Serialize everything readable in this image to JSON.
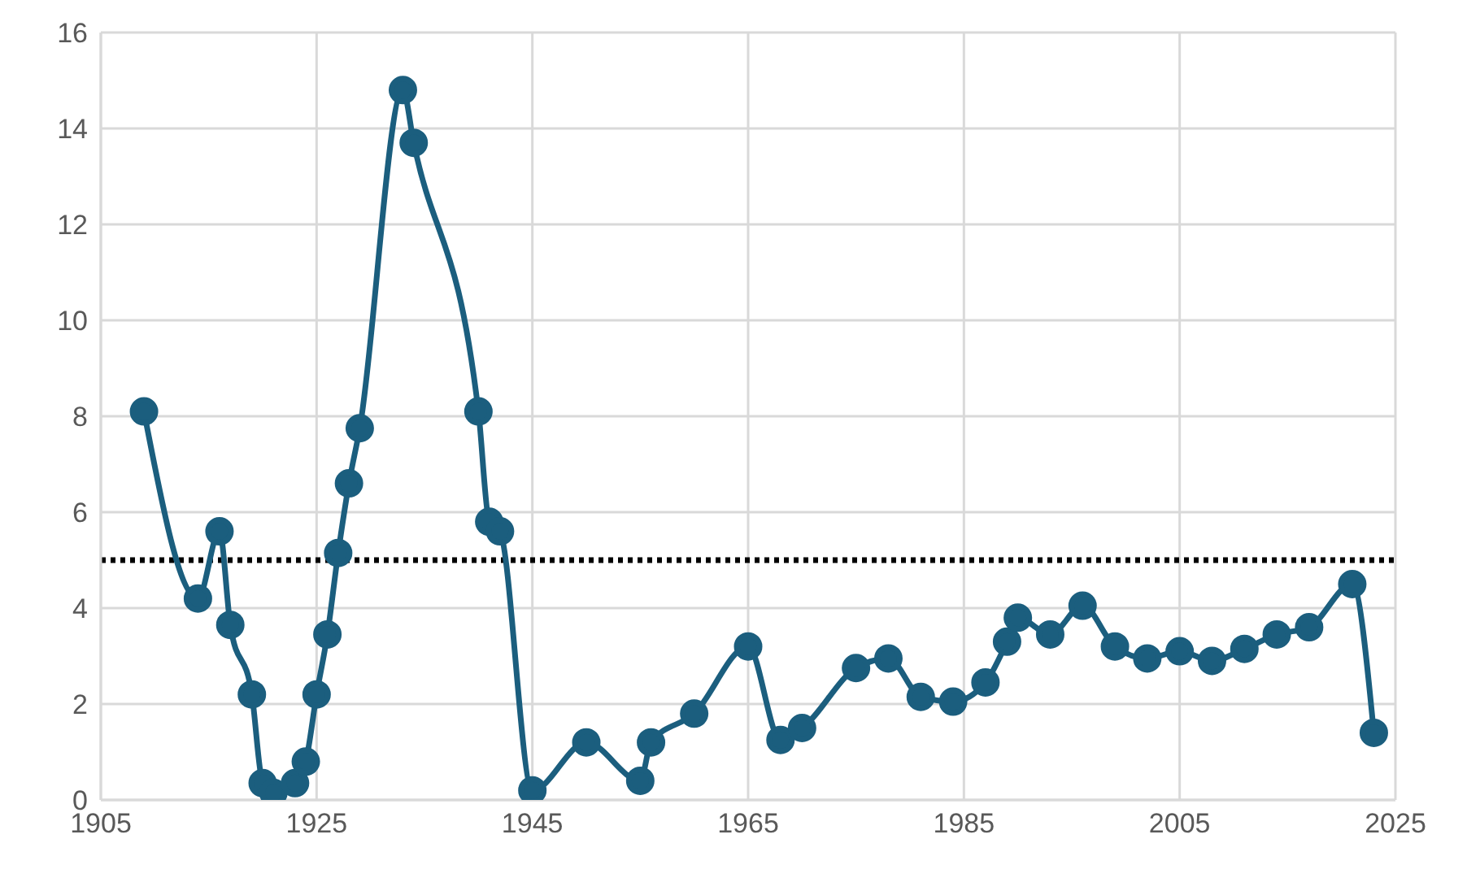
{
  "chart_data": {
    "type": "line",
    "x": [
      1909,
      1914,
      1916,
      1917,
      1919,
      1920,
      1921,
      1923,
      1924,
      1925,
      1926,
      1927,
      1928,
      1929,
      1933,
      1934,
      1940,
      1941,
      1942,
      1945,
      1950,
      1955,
      1956,
      1960,
      1965,
      1968,
      1970,
      1975,
      1978,
      1981,
      1984,
      1987,
      1989,
      1990,
      1993,
      1996,
      1999,
      2002,
      2005,
      2008,
      2011,
      2014,
      2017,
      2021,
      2023
    ],
    "series": [
      {
        "color": "#1b5e7e",
        "values": [
          8.1,
          4.2,
          5.6,
          3.65,
          2.2,
          0.35,
          0.15,
          0.35,
          0.8,
          2.2,
          3.45,
          5.15,
          6.6,
          7.75,
          14.8,
          13.7,
          8.1,
          5.8,
          5.6,
          0.2,
          1.2,
          0.4,
          1.2,
          1.8,
          3.2,
          1.25,
          1.5,
          2.75,
          2.95,
          2.15,
          2.05,
          2.45,
          3.3,
          3.8,
          3.45,
          4.05,
          3.2,
          2.95,
          3.1,
          2.9,
          3.15,
          3.45,
          3.6,
          4.5,
          1.4
        ]
      }
    ],
    "xlim": [
      1905,
      2025
    ],
    "xticks": [
      1905,
      1925,
      1945,
      1965,
      1985,
      2005,
      2025
    ],
    "ylim": [
      0,
      16
    ],
    "yticks": [
      0,
      2,
      4,
      6,
      8,
      10,
      12,
      14,
      16
    ],
    "ref_lines": [
      {
        "axis": "y",
        "value": 5,
        "color": "#000000",
        "line_style": "dotted"
      }
    ],
    "grid": true,
    "marker": "circle",
    "line_style": "solid",
    "legend": false
  }
}
